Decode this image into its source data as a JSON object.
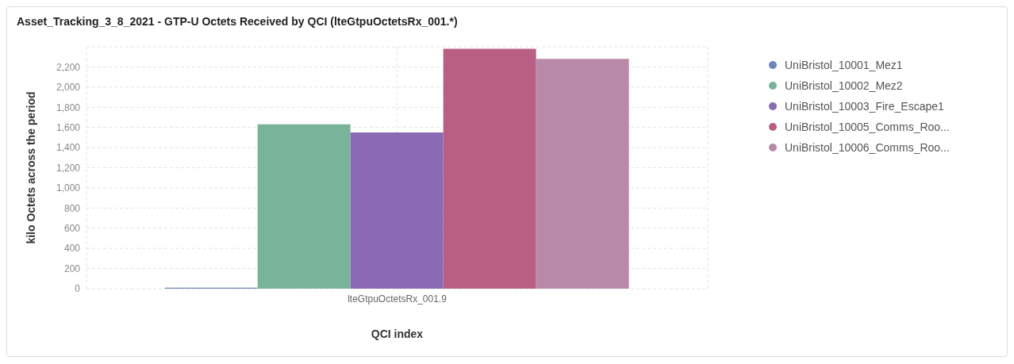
{
  "chart_data": {
    "type": "bar",
    "title": "Asset_Tracking_3_8_2021 - GTP-U Octets Received by QCI (lteGtpuOctetsRx_001.*)",
    "xlabel": "QCI index",
    "ylabel": "kilo Octets across the period",
    "categories": [
      "lteGtpuOctetsRx_001.9"
    ],
    "series": [
      {
        "name": "UniBristol_10001_Mez1",
        "color": "#6f87b8",
        "values": [
          10
        ]
      },
      {
        "name": "UniBristol_10002_Mez2",
        "color": "#79b39a",
        "values": [
          1630
        ]
      },
      {
        "name": "UniBristol_10003_Fire_Escape1",
        "color": "#8b6ab4",
        "values": [
          1550
        ]
      },
      {
        "name": "UniBristol_10005_Comms_Roo...",
        "color": "#b95f83",
        "values": [
          2380
        ]
      },
      {
        "name": "UniBristol_10006_Comms_Roo...",
        "color": "#b88aa8",
        "values": [
          2280
        ]
      }
    ],
    "ylim": [
      0,
      2400
    ],
    "yticks": [
      0,
      200,
      400,
      600,
      800,
      {
        "value": 1000,
        "label": "1,000"
      },
      {
        "value": 1200,
        "label": "1,200"
      },
      {
        "value": 1400,
        "label": "1,400"
      },
      {
        "value": 1600,
        "label": "1,600"
      },
      {
        "value": 1800,
        "label": "1,800"
      },
      {
        "value": 2000,
        "label": "2,000"
      },
      {
        "value": 2200,
        "label": "2,200"
      }
    ],
    "grid": true,
    "legend": "top right"
  }
}
